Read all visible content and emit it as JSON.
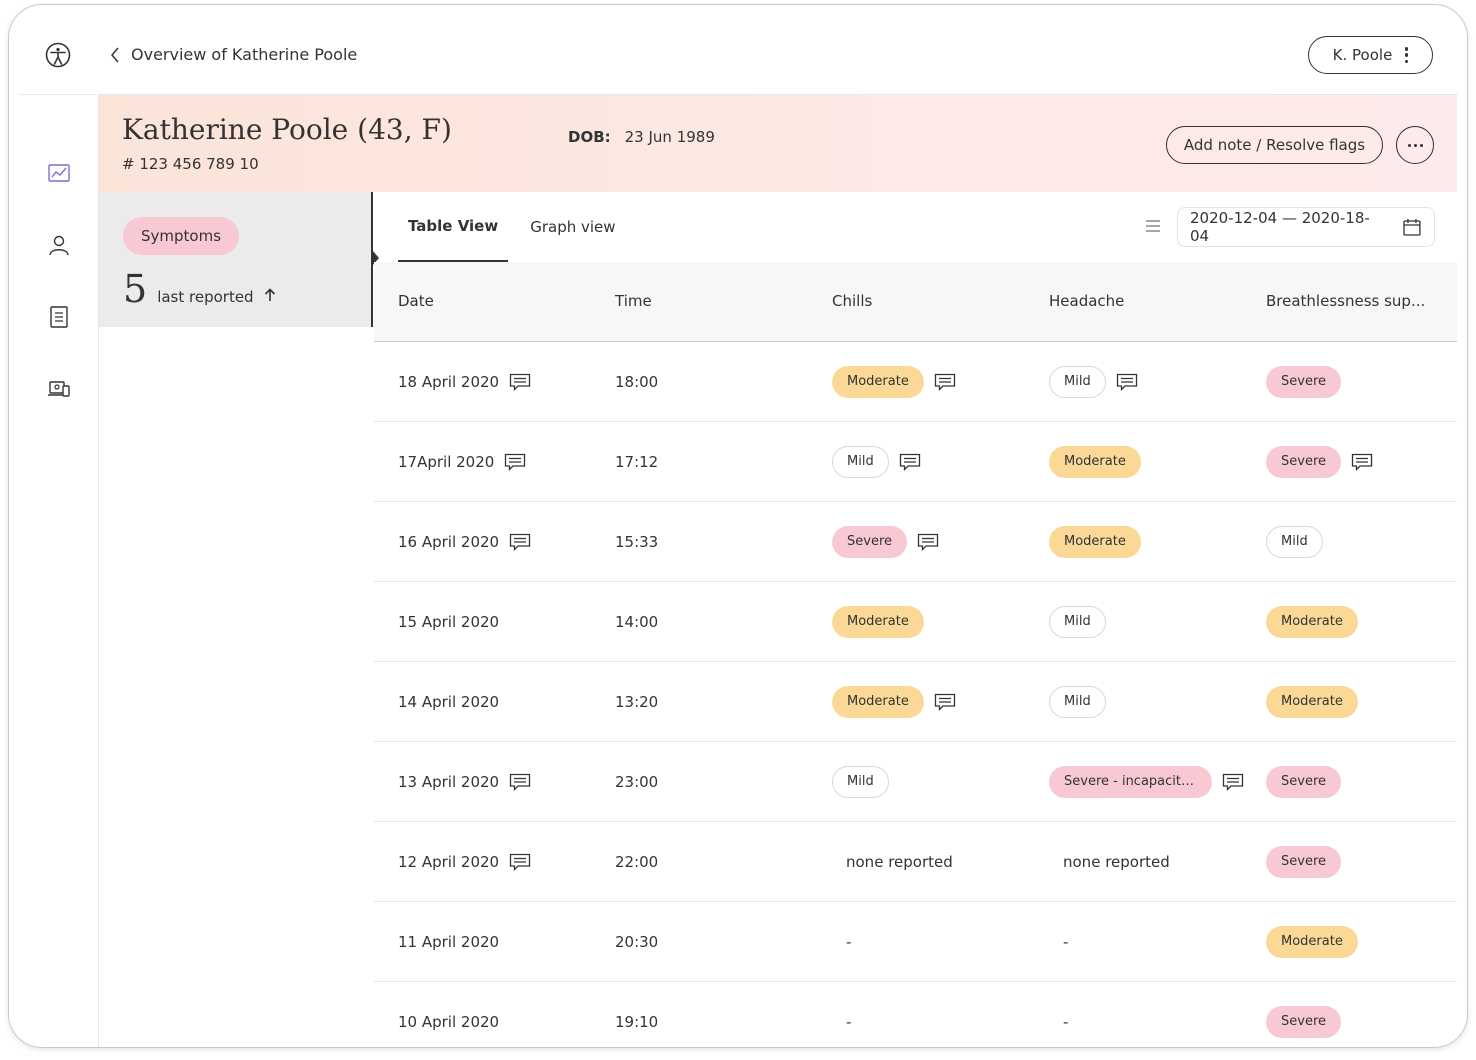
{
  "topbar": {
    "back_label": "Overview of Katherine Poole",
    "user_label": "K. Poole"
  },
  "nav": {
    "items": [
      "trend-chart-icon",
      "person-icon",
      "document-icon",
      "device-icon"
    ]
  },
  "patient": {
    "name": "Katherine Poole (43,  F)",
    "id": "# 123 456 789 10",
    "dob_label": "DOB:",
    "dob_value": "23 Jun 1989",
    "add_note_label": "Add note / Resolve flags"
  },
  "symptoms_card": {
    "chip_label": "Symptoms",
    "count": "5",
    "count_label": "last reported"
  },
  "tabs": [
    {
      "label": "Table View",
      "active": true
    },
    {
      "label": "Graph view",
      "active": false
    }
  ],
  "date_range": "2020-12-04 — 2020-18-04",
  "table": {
    "headers": [
      "Date",
      "Time",
      "Chills",
      "Headache",
      "Breathlessness sup..."
    ],
    "rows": [
      {
        "date": "18 April 2020",
        "date_note": true,
        "time": "18:00",
        "chills": {
          "text": "Moderate",
          "level": "moderate",
          "note": true
        },
        "headache": {
          "text": "Mild",
          "level": "mild",
          "note": true
        },
        "breath": {
          "text": "Severe",
          "level": "severe",
          "note": false
        }
      },
      {
        "date": "17April 2020",
        "date_note": true,
        "time": "17:12",
        "chills": {
          "text": "Mild",
          "level": "mild",
          "note": true
        },
        "headache": {
          "text": "Moderate",
          "level": "moderate",
          "note": false
        },
        "breath": {
          "text": "Severe",
          "level": "severe",
          "note": true
        }
      },
      {
        "date": "16 April 2020",
        "date_note": true,
        "time": "15:33",
        "chills": {
          "text": "Severe",
          "level": "severe",
          "note": true
        },
        "headache": {
          "text": "Moderate",
          "level": "moderate",
          "note": false
        },
        "breath": {
          "text": "Mild",
          "level": "mild",
          "note": false
        }
      },
      {
        "date": "15 April 2020",
        "date_note": false,
        "time": "14:00",
        "chills": {
          "text": "Moderate",
          "level": "moderate",
          "note": false
        },
        "headache": {
          "text": "Mild",
          "level": "mild",
          "note": false
        },
        "breath": {
          "text": "Moderate",
          "level": "moderate",
          "note": false
        }
      },
      {
        "date": "14 April 2020",
        "date_note": false,
        "time": "13:20",
        "chills": {
          "text": "Moderate",
          "level": "moderate",
          "note": true
        },
        "headache": {
          "text": "Mild",
          "level": "mild",
          "note": false
        },
        "breath": {
          "text": "Moderate",
          "level": "moderate",
          "note": false
        }
      },
      {
        "date": "13 April 2020",
        "date_note": true,
        "time": "23:00",
        "chills": {
          "text": "Mild",
          "level": "mild",
          "note": false
        },
        "headache": {
          "text": "Severe - incapacita...",
          "level": "severe",
          "note": true
        },
        "breath": {
          "text": "Severe",
          "level": "severe",
          "note": false
        }
      },
      {
        "date": "12 April 2020",
        "date_note": true,
        "time": "22:00",
        "chills": {
          "text": "none reported",
          "level": "plain",
          "note": false
        },
        "headache": {
          "text": "none reported",
          "level": "plain",
          "note": false
        },
        "breath": {
          "text": "Severe",
          "level": "severe",
          "note": false
        }
      },
      {
        "date": "11 April 2020",
        "date_note": false,
        "time": "20:30",
        "chills": {
          "text": "-",
          "level": "plain",
          "note": false
        },
        "headache": {
          "text": "-",
          "level": "plain",
          "note": false
        },
        "breath": {
          "text": "Moderate",
          "level": "moderate",
          "note": false
        }
      },
      {
        "date": "10 April 2020",
        "date_note": false,
        "time": "19:10",
        "chills": {
          "text": "-",
          "level": "plain",
          "note": false
        },
        "headache": {
          "text": "-",
          "level": "plain",
          "note": false
        },
        "breath": {
          "text": "Severe",
          "level": "severe",
          "note": false
        }
      }
    ]
  },
  "colors": {
    "moderate": "#fcd897",
    "severe": "#f8c9d3",
    "mild_border": "#d8d8d8",
    "nav_active": "#7b6fd6"
  }
}
